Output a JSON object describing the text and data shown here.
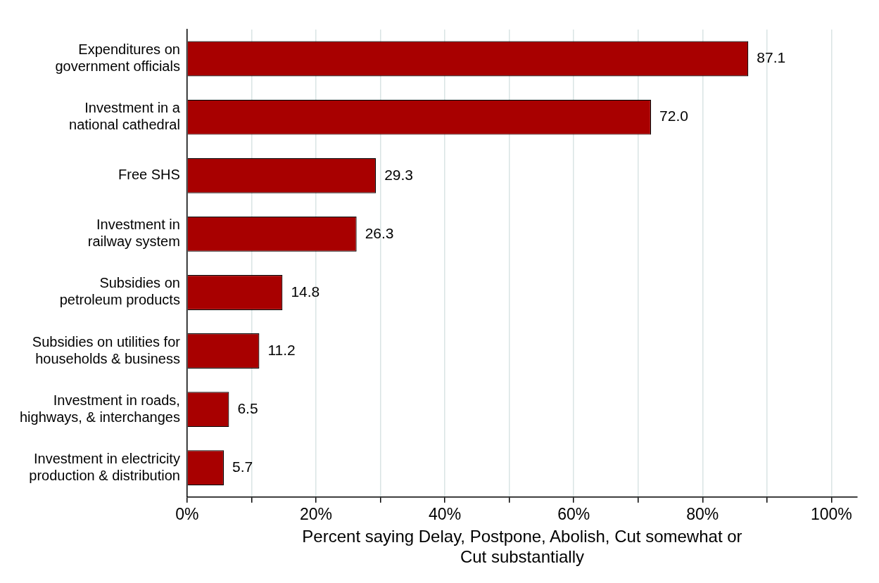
{
  "chart_data": {
    "type": "bar",
    "orientation": "horizontal",
    "categories": [
      "Expenditures on\ngovernment officials",
      "Investment in a\nnational cathedral",
      "Free SHS",
      "Investment in\nrailway system",
      "Subsidies on\npetroleum products",
      "Subsidies on utilities for\nhouseholds & business",
      "Investment in roads,\nhighways, & interchanges",
      "Investment in electricity\nproduction & distribution"
    ],
    "values": [
      87.1,
      72.0,
      29.3,
      26.3,
      14.8,
      11.2,
      6.5,
      5.7
    ],
    "value_labels": [
      "87.1",
      "72.0",
      "29.3",
      "26.3",
      "14.8",
      "11.2",
      "6.5",
      "5.7"
    ],
    "color": "#a80000",
    "xlabel": "Percent saying Delay, Postpone, Abolish, Cut somewhat or Cut substantially",
    "xlim": [
      0,
      104
    ],
    "xticks": [
      {
        "value": 0,
        "label": "0%"
      },
      {
        "value": 10,
        "label": null
      },
      {
        "value": 20,
        "label": "20%"
      },
      {
        "value": 30,
        "label": null
      },
      {
        "value": 40,
        "label": "40%"
      },
      {
        "value": 50,
        "label": null
      },
      {
        "value": 60,
        "label": "60%"
      },
      {
        "value": 70,
        "label": null
      },
      {
        "value": 80,
        "label": "80%"
      },
      {
        "value": 90,
        "label": null
      },
      {
        "value": 100,
        "label": "100%"
      }
    ],
    "grid": "x",
    "legend": false
  }
}
